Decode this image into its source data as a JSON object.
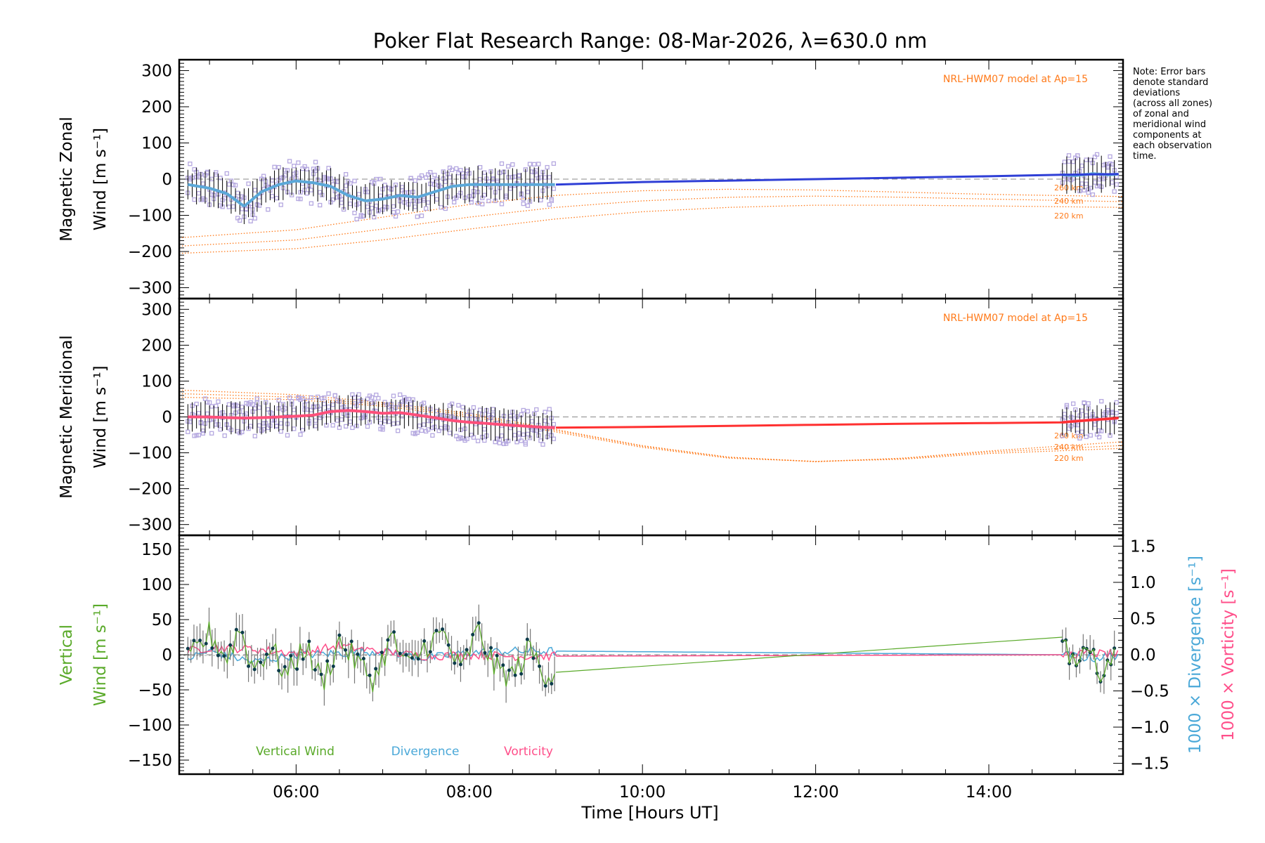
{
  "chart_data": {
    "type": "line",
    "title": "Poker Flat Research Range: 08-Mar-2026, λ=630.0 nm",
    "xlabel": "Time [Hours UT]",
    "xlim": [
      4.65,
      15.55
    ],
    "xticks": [
      6,
      8,
      10,
      12,
      14
    ],
    "xtick_labels": [
      "06:00",
      "08:00",
      "10:00",
      "12:00",
      "14:00"
    ],
    "note": "Note: Error bars\ndenote standard\ndeviations\n(across all zones)\nof zonal and\nmeridional wind\ncomponents at\neach observation\ntime.",
    "colors": {
      "zonal": "#2f3fd6",
      "zonal_fit": "#5ba8d8",
      "meridional": "#ff3030",
      "meridional_fit": "#ff4f7a",
      "model": "#ff7a1a",
      "scatter": "#b5a8e0",
      "vertical": "#5aaa2a",
      "divergence": "#4aa8d8",
      "vorticity": "#ff4f8a",
      "errorbar": "#000000",
      "vertical_err": "#777777",
      "point": "#0c3b4a"
    },
    "panels": [
      {
        "id": "zonal",
        "ylabel_line1": "Magnetic Zonal",
        "ylabel_line2": "Wind [m s⁻¹]",
        "ylim": [
          -330,
          330
        ],
        "yticks": [
          -300,
          -200,
          -100,
          0,
          100,
          200,
          300
        ],
        "ytick_labels": [
          "−300",
          "−200",
          "−100",
          "0",
          "100",
          "200",
          "300"
        ],
        "model_label": "NRL-HWM07 model at Ap=15",
        "model_curves": [
          {
            "label": "260 km",
            "x": [
              4.65,
              6,
              7,
              8,
              9,
              10,
              11,
              12,
              13,
              14,
              15.5
            ],
            "y": [
              -162,
              -140,
              -105,
              -70,
              -45,
              -32,
              -28,
              -30,
              -36,
              -42,
              -48
            ]
          },
          {
            "label": "240 km",
            "x": [
              4.65,
              6,
              7,
              8,
              9,
              10,
              11,
              12,
              13,
              14,
              15.5
            ],
            "y": [
              -185,
              -168,
              -138,
              -105,
              -78,
              -60,
              -50,
              -47,
              -50,
              -55,
              -62
            ]
          },
          {
            "label": "220 km",
            "x": [
              4.65,
              6,
              7,
              8,
              9,
              10,
              11,
              12,
              13,
              14,
              15.5
            ],
            "y": [
              -205,
              -192,
              -168,
              -138,
              -110,
              -90,
              -78,
              -72,
              -72,
              -74,
              -78
            ]
          }
        ],
        "obs_segments": [
          {
            "x": [
              4.75,
              5.0,
              5.2,
              5.4,
              5.6,
              5.8,
              6.0,
              6.2,
              6.4,
              6.6,
              6.8,
              7.0,
              7.2,
              7.4,
              7.6,
              7.8,
              8.0,
              8.2,
              8.4,
              8.6,
              8.8,
              9.0
            ],
            "y": [
              -15,
              -25,
              -40,
              -75,
              -35,
              -15,
              -5,
              -10,
              -20,
              -45,
              -60,
              -55,
              -45,
              -50,
              -35,
              -20,
              -15,
              -15,
              -15,
              -15,
              -15,
              -15
            ]
          },
          {
            "x": [
              14.85,
              15.0,
              15.2,
              15.4,
              15.5
            ],
            "y": [
              12,
              10,
              15,
              12,
              14
            ]
          }
        ],
        "error_sd": 42,
        "mean_curve": {
          "x": [
            9.0,
            10,
            11,
            12,
            13,
            14,
            14.85,
            15.5
          ],
          "y": [
            -15,
            -8,
            -4,
            0,
            4,
            8,
            12,
            14
          ]
        },
        "mean_color": "zonal"
      },
      {
        "id": "meridional",
        "ylabel_line1": "Magnetic Meridional",
        "ylabel_line2": "Wind [m s⁻¹]",
        "ylim": [
          -330,
          330
        ],
        "yticks": [
          -300,
          -200,
          -100,
          0,
          100,
          200,
          300
        ],
        "ytick_labels": [
          "−300",
          "−200",
          "−100",
          "0",
          "100",
          "200",
          "300"
        ],
        "model_label": "NRL-HWM07 model at Ap=15",
        "model_curves": [
          {
            "label": "260 km",
            "x": [
              4.65,
              6,
              7,
              8,
              9,
              10,
              11,
              12,
              13,
              14,
              15.5
            ],
            "y": [
              75,
              62,
              40,
              10,
              -35,
              -80,
              -112,
              -125,
              -115,
              -95,
              -70
            ]
          },
          {
            "label": "240 km",
            "x": [
              4.65,
              6,
              7,
              8,
              9,
              10,
              11,
              12,
              13,
              14,
              15.5
            ],
            "y": [
              65,
              55,
              35,
              5,
              -38,
              -82,
              -113,
              -124,
              -116,
              -98,
              -80
            ]
          },
          {
            "label": "220 km",
            "x": [
              4.65,
              6,
              7,
              8,
              9,
              10,
              11,
              12,
              13,
              14,
              15.5
            ],
            "y": [
              55,
              48,
              30,
              0,
              -42,
              -85,
              -115,
              -124,
              -118,
              -102,
              -88
            ]
          }
        ],
        "obs_segments": [
          {
            "x": [
              4.75,
              5.0,
              5.2,
              5.4,
              5.6,
              5.8,
              6.0,
              6.2,
              6.4,
              6.6,
              6.8,
              7.0,
              7.2,
              7.4,
              7.6,
              7.8,
              8.0,
              8.2,
              8.4,
              8.6,
              8.8,
              9.0
            ],
            "y": [
              0,
              0,
              -2,
              -3,
              -2,
              0,
              2,
              5,
              15,
              18,
              15,
              10,
              12,
              5,
              -2,
              -10,
              -15,
              -18,
              -22,
              -25,
              -28,
              -30
            ]
          },
          {
            "x": [
              14.85,
              15.0,
              15.2,
              15.4,
              15.5
            ],
            "y": [
              -15,
              -12,
              -8,
              -5,
              -3
            ]
          }
        ],
        "error_sd": 38,
        "mean_curve": {
          "x": [
            9.0,
            10,
            11,
            12,
            13,
            14,
            14.85,
            15.5
          ],
          "y": [
            -30,
            -28,
            -25,
            -22,
            -19,
            -17,
            -15,
            -3
          ]
        },
        "mean_color": "meridional"
      },
      {
        "id": "vertical",
        "ylabel_line1": "Vertical",
        "ylabel_line2": "Wind [m s⁻¹]",
        "ylim": [
          -170,
          170
        ],
        "yticks": [
          -150,
          -100,
          -50,
          0,
          50,
          100,
          150
        ],
        "ytick_labels": [
          "−150",
          "−100",
          "−50",
          "0",
          "50",
          "100",
          "150"
        ],
        "right_axis": {
          "ylim": [
            -1.65,
            1.65
          ],
          "yticks": [
            -1.5,
            -1.0,
            -0.5,
            0.0,
            0.5,
            1.0,
            1.5
          ],
          "ytick_labels": [
            "−1.5",
            "−1.0",
            "−0.5",
            "0.0",
            "0.5",
            "1.0",
            "1.5"
          ],
          "label_divergence": "1000 × Divergence [s⁻¹]",
          "label_vorticity": "1000 × Vorticity [s⁻¹]"
        },
        "legend": [
          "Vertical Wind",
          "Divergence",
          "Vorticity"
        ],
        "vertical_wind": {
          "x": [
            4.75,
            5.0,
            5.2,
            5.35,
            5.5,
            5.7,
            5.9,
            6.1,
            6.3,
            6.5,
            6.7,
            6.9,
            7.1,
            7.3,
            7.5,
            7.7,
            7.9,
            8.1,
            8.3,
            8.5,
            8.7,
            8.85,
            9.0
          ],
          "y": [
            -10,
            30,
            -5,
            40,
            -20,
            10,
            -30,
            15,
            -40,
            20,
            -10,
            -35,
            25,
            -20,
            15,
            30,
            -25,
            35,
            -20,
            -30,
            10,
            -25,
            -25
          ]
        },
        "vertical_interp": {
          "x": [
            9.0,
            14.85
          ],
          "y": [
            -25,
            25
          ]
        },
        "vertical_tail": {
          "x": [
            14.85,
            15.0,
            15.15,
            15.3,
            15.45
          ],
          "y": [
            25,
            -20,
            10,
            -30,
            5
          ]
        },
        "error_sd": 22,
        "divergence": {
          "x": [
            4.75,
            5.0,
            5.5,
            6.0,
            6.5,
            7.0,
            7.5,
            8.0,
            8.5,
            9.0,
            14.85,
            15.2,
            15.5
          ],
          "y": [
            -0.05,
            0.05,
            -0.1,
            0.0,
            0.02,
            0.05,
            -0.05,
            0.03,
            0.05,
            0.05,
            0.0,
            -0.05,
            0.0
          ]
        },
        "vorticity": {
          "x": [
            4.75,
            5.0,
            5.5,
            6.0,
            6.5,
            7.0,
            7.5,
            8.0,
            8.5,
            9.0,
            14.85,
            15.2,
            15.5
          ],
          "y": [
            0.05,
            0.1,
            0.08,
            0.02,
            0.12,
            0.04,
            -0.02,
            0.0,
            -0.02,
            -0.02,
            0.0,
            0.02,
            0.0
          ]
        }
      }
    ]
  }
}
